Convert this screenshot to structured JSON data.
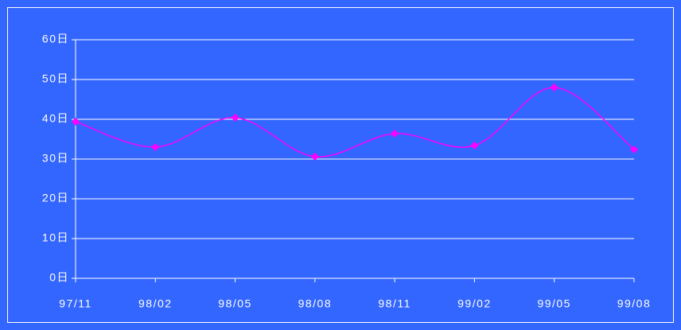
{
  "chart_data": {
    "type": "line",
    "categories": [
      "97/11",
      "98/02",
      "98/05",
      "98/08",
      "98/11",
      "99/02",
      "99/05",
      "99/08"
    ],
    "values": [
      39.4,
      33,
      40.4,
      30.6,
      36.4,
      33.4,
      48,
      32.4
    ],
    "color": "#ff00ff",
    "smooth": true,
    "ylim": [
      0,
      60
    ],
    "yticks": [
      {
        "value": 0,
        "label": "0日"
      },
      {
        "value": 10,
        "label": "10日"
      },
      {
        "value": 20,
        "label": "20日"
      },
      {
        "value": 30,
        "label": "30日"
      },
      {
        "value": 40,
        "label": "40日"
      },
      {
        "value": 50,
        "label": "50日"
      },
      {
        "value": 60,
        "label": "60日"
      }
    ],
    "grid": true
  }
}
